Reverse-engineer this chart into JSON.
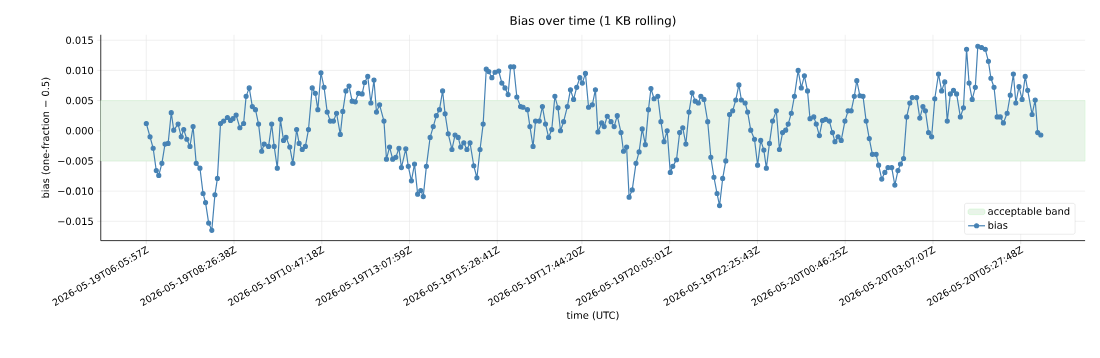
{
  "chart_data": {
    "type": "line",
    "title": "Bias over time (1 KB rolling)",
    "xlabel": "time (UTC)",
    "ylabel": "bias (one-fraction − 0.5)",
    "x": [
      "2026-05-19T06:06",
      "2026-05-19T06:12",
      "2026-05-19T06:17",
      "2026-05-19T06:22",
      "2026-05-19T06:26",
      "2026-05-19T06:31",
      "2026-05-19T06:36",
      "2026-05-19T06:41",
      "2026-05-19T06:46",
      "2026-05-19T06:50",
      "2026-05-19T06:57",
      "2026-05-19T07:02",
      "2026-05-19T07:06",
      "2026-05-19T07:11",
      "2026-05-19T07:16",
      "2026-05-19T07:21",
      "2026-05-19T07:26",
      "2026-05-19T07:32",
      "2026-05-19T07:37",
      "2026-05-19T07:41",
      "2026-05-19T07:46",
      "2026-05-19T07:51",
      "2026-05-19T07:56",
      "2026-05-19T08:00",
      "2026-05-19T08:05",
      "2026-05-19T08:10",
      "2026-05-19T08:16",
      "2026-05-19T08:21",
      "2026-05-19T08:25",
      "2026-05-19T08:30",
      "2026-05-19T08:36",
      "2026-05-19T08:42",
      "2026-05-19T08:46",
      "2026-05-19T08:51",
      "2026-05-19T08:56",
      "2026-05-19T09:01",
      "2026-05-19T09:06",
      "2026-05-19T09:11",
      "2026-05-19T09:15",
      "2026-05-19T09:22",
      "2026-05-19T09:27",
      "2026-05-19T09:31",
      "2026-05-19T09:36",
      "2026-05-19T09:41",
      "2026-05-19T09:46",
      "2026-05-19T09:50",
      "2026-05-19T09:56",
      "2026-05-19T10:01",
      "2026-05-19T10:07",
      "2026-05-19T10:11",
      "2026-05-19T10:16",
      "2026-05-19T10:21",
      "2026-05-19T10:26",
      "2026-05-19T10:32",
      "2026-05-19T10:37",
      "2026-05-19T10:41",
      "2026-05-19T10:46",
      "2026-05-19T10:51",
      "2026-05-19T10:56",
      "2026-05-19T11:01",
      "2026-05-19T11:06",
      "2026-05-19T11:11",
      "2026-05-19T11:17",
      "2026-05-19T11:21",
      "2026-05-19T11:26",
      "2026-05-19T11:31",
      "2026-05-19T11:36",
      "2026-05-19T11:41",
      "2026-05-19T11:46",
      "2026-05-19T11:52",
      "2026-05-19T11:56",
      "2026-05-19T12:01",
      "2026-05-19T12:06",
      "2026-05-19T12:11",
      "2026-05-19T12:15",
      "2026-05-19T12:20",
      "2026-05-19T12:27",
      "2026-05-19T12:31",
      "2026-05-19T12:36",
      "2026-05-19T12:41",
      "2026-05-19T12:46",
      "2026-05-19T12:51",
      "2026-05-19T12:55",
      "2026-05-19T13:02",
      "2026-05-19T13:06",
      "2026-05-19T13:11",
      "2026-05-19T13:16",
      "2026-05-19T13:21",
      "2026-05-19T13:26",
      "2026-05-19T13:30",
      "2026-05-19T13:35",
      "2026-05-19T13:41",
      "2026-05-19T13:46",
      "2026-05-19T13:51",
      "2026-05-19T13:56",
      "2026-05-19T14:01",
      "2026-05-19T14:05",
      "2026-05-19T14:10",
      "2026-05-19T14:16",
      "2026-05-19T14:21",
      "2026-05-19T14:26",
      "2026-05-19T14:30",
      "2026-05-19T14:35",
      "2026-05-19T14:40",
      "2026-05-19T14:45",
      "2026-05-19T14:51",
      "2026-05-19T14:56",
      "2026-05-19T15:01",
      "2026-05-19T15:06",
      "2026-05-19T15:11",
      "2026-05-19T15:15",
      "2026-05-19T15:20",
      "2026-05-19T15:25",
      "2026-05-19T15:31",
      "2026-05-19T15:36",
      "2026-05-19T15:41",
      "2026-05-19T15:46",
      "2026-05-19T15:50",
      "2026-05-19T15:55",
      "2026-05-19T16:00",
      "2026-05-19T16:06",
      "2026-05-19T16:10",
      "2026-05-19T16:17",
      "2026-05-19T16:21",
      "2026-05-19T16:26",
      "2026-05-19T16:30",
      "2026-05-19T16:36",
      "2026-05-19T16:41",
      "2026-05-19T16:46",
      "2026-05-19T16:51",
      "2026-05-19T16:56",
      "2026-05-19T17:01",
      "2026-05-19T17:06",
      "2026-05-19T17:10",
      "2026-05-19T17:15",
      "2026-05-19T17:21",
      "2026-05-19T17:26",
      "2026-05-19T17:31",
      "2026-05-19T17:36",
      "2026-05-19T17:41",
      "2026-05-19T17:45",
      "2026-05-19T17:50",
      "2026-05-19T17:55",
      "2026-05-19T18:01",
      "2026-05-19T18:06",
      "2026-05-19T18:10",
      "2026-05-19T18:16",
      "2026-05-19T18:20",
      "2026-05-19T18:25",
      "2026-05-19T18:31",
      "2026-05-19T18:36",
      "2026-05-19T18:41",
      "2026-05-19T18:47",
      "2026-05-19T18:51",
      "2026-05-19T18:56",
      "2026-05-19T19:00",
      "2026-05-19T19:05",
      "2026-05-19T19:11",
      "2026-05-19T19:16",
      "2026-05-19T19:21",
      "2026-05-19T19:26",
      "2026-05-19T19:31",
      "2026-05-19T19:35",
      "2026-05-19T19:40",
      "2026-05-19T19:46",
      "2026-05-19T19:51",
      "2026-05-19T19:56",
      "2026-05-19T20:01",
      "2026-05-19T20:06",
      "2026-05-19T20:10",
      "2026-05-19T20:16",
      "2026-05-19T20:21",
      "2026-05-19T20:26",
      "2026-05-19T20:31",
      "2026-05-19T20:36",
      "2026-05-19T20:41",
      "2026-05-19T20:46",
      "2026-05-19T20:51",
      "2026-05-19T20:55",
      "2026-05-19T21:00",
      "2026-05-19T21:06",
      "2026-05-19T21:11",
      "2026-05-19T21:16",
      "2026-05-19T21:21",
      "2026-05-19T21:25",
      "2026-05-19T21:30",
      "2026-05-19T21:35",
      "2026-05-19T21:41",
      "2026-05-19T21:46",
      "2026-05-19T21:51",
      "2026-05-19T21:56",
      "2026-05-19T22:00",
      "2026-05-19T22:06",
      "2026-05-19T22:10",
      "2026-05-19T22:15",
      "2026-05-19T22:21",
      "2026-05-19T22:26",
      "2026-05-19T22:31",
      "2026-05-19T22:36",
      "2026-05-19T22:40",
      "2026-05-19T22:45",
      "2026-05-19T22:50",
      "2026-05-19T22:56",
      "2026-05-19T23:01",
      "2026-05-19T23:06",
      "2026-05-19T23:11",
      "2026-05-19T23:15",
      "2026-05-19T23:20",
      "2026-05-19T23:25",
      "2026-05-19T23:31",
      "2026-05-19T23:36",
      "2026-05-19T23:41",
      "2026-05-19T23:46",
      "2026-05-19T23:50",
      "2026-05-19T23:56",
      "2026-05-20T00:00",
      "2026-05-20T00:05",
      "2026-05-20T00:10",
      "2026-05-20T00:15",
      "2026-05-20T00:21",
      "2026-05-20T00:26",
      "2026-05-20T00:30",
      "2026-05-20T00:35",
      "2026-05-20T00:40",
      "2026-05-20T00:46",
      "2026-05-20T00:51",
      "2026-05-20T00:56",
      "2026-05-20T01:01",
      "2026-05-20T01:05",
      "2026-05-20T01:10",
      "2026-05-20T01:15",
      "2026-05-20T01:20",
      "2026-05-20T01:25",
      "2026-05-20T01:30",
      "2026-05-20T01:36",
      "2026-05-20T01:40",
      "2026-05-20T01:45",
      "2026-05-20T01:50",
      "2026-05-20T01:55",
      "2026-05-20T02:01",
      "2026-05-20T02:06",
      "2026-05-20T02:11",
      "2026-05-20T02:15",
      "2026-05-20T02:20",
      "2026-05-20T02:25",
      "2026-05-20T02:30",
      "2026-05-20T02:34",
      "2026-05-20T02:41",
      "2026-05-20T02:46",
      "2026-05-20T02:51",
      "2026-05-20T02:55",
      "2026-05-20T03:00",
      "2026-05-20T03:05",
      "2026-05-20T03:10",
      "2026-05-20T03:16",
      "2026-05-20T03:21",
      "2026-05-20T03:26",
      "2026-05-20T03:30",
      "2026-05-20T03:35",
      "2026-05-20T03:40",
      "2026-05-20T03:45",
      "2026-05-20T03:51",
      "2026-05-20T03:56",
      "2026-05-20T04:01",
      "2026-05-20T04:05",
      "2026-05-20T04:10",
      "2026-05-20T04:15",
      "2026-05-20T04:19",
      "2026-05-20T04:25",
      "2026-05-20T04:31",
      "2026-05-20T04:36",
      "2026-05-20T04:40",
      "2026-05-20T04:45",
      "2026-05-20T04:50",
      "2026-05-20T04:55",
      "2026-05-20T05:00",
      "2026-05-20T05:06",
      "2026-05-20T05:11",
      "2026-05-20T05:16",
      "2026-05-20T05:20",
      "2026-05-20T05:25",
      "2026-05-20T05:30",
      "2026-05-20T05:35",
      "2026-05-20T05:39",
      "2026-05-20T05:46",
      "2026-05-20T05:51",
      "2026-05-20T05:55",
      "2026-05-20T06:00"
    ],
    "series": [
      {
        "name": "bias",
        "color": "#4682b4",
        "values": [
          0.0012,
          -0.001,
          -0.0029,
          -0.0066,
          -0.0074,
          -0.0054,
          -0.0022,
          -0.0021,
          0.003,
          0.0001,
          0.0011,
          -0.001,
          0.0002,
          -0.0014,
          -0.0026,
          0.0007,
          -0.0054,
          -0.0062,
          -0.0104,
          -0.0119,
          -0.0153,
          -0.0165,
          -0.0106,
          -0.0079,
          0.0012,
          0.0016,
          0.0022,
          0.0017,
          0.002,
          0.0026,
          0.0005,
          0.0012,
          0.0057,
          0.0071,
          0.004,
          0.0035,
          0.0011,
          -0.0034,
          -0.0022,
          -0.0026,
          0.0011,
          -0.0026,
          -0.0062,
          0.0019,
          -0.0016,
          -0.0011,
          -0.0027,
          -0.0054,
          0.0002,
          -0.0021,
          -0.0031,
          -0.0026,
          0.0002,
          0.0071,
          0.0062,
          0.0035,
          0.0096,
          0.0072,
          0.0031,
          0.0016,
          0.0016,
          0.0029,
          -0.0006,
          0.0032,
          0.0066,
          0.0074,
          0.0049,
          0.0048,
          0.0062,
          0.0061,
          0.008,
          0.009,
          0.0046,
          0.0084,
          0.0031,
          0.0043,
          0.0016,
          -0.0047,
          -0.0027,
          -0.0047,
          -0.0044,
          -0.0029,
          -0.0061,
          -0.003,
          -0.0059,
          -0.0083,
          -0.0055,
          -0.0105,
          -0.0099,
          -0.0109,
          -0.0059,
          -0.0011,
          0.0007,
          0.0025,
          0.0035,
          0.0066,
          0.0028,
          -0.0005,
          -0.0031,
          -0.0007,
          -0.0011,
          -0.0027,
          -0.002,
          -0.0031,
          -0.002,
          -0.0058,
          -0.0078,
          -0.0031,
          0.0011,
          0.0102,
          0.0098,
          0.0088,
          0.0097,
          0.0099,
          0.0079,
          0.0071,
          0.006,
          0.0106,
          0.0106,
          0.0056,
          0.004,
          0.0039,
          0.0035,
          0.0007,
          -0.0026,
          0.0016,
          0.0016,
          0.004,
          0.0011,
          -0.0011,
          0.0002,
          0.0057,
          0.0038,
          0.0,
          0.0015,
          0.004,
          0.0068,
          0.0052,
          0.0072,
          0.0088,
          0.0079,
          0.0095,
          0.0039,
          0.0043,
          0.0068,
          -0.0002,
          0.0013,
          0.0007,
          0.0024,
          0.0015,
          0.0007,
          0.0025,
          -0.0003,
          -0.0034,
          -0.0027,
          -0.011,
          -0.0098,
          -0.0054,
          -0.0035,
          0.0003,
          -0.0023,
          0.0035,
          0.007,
          0.0053,
          0.0057,
          0.0015,
          -0.0018,
          0.0,
          -0.0069,
          -0.0059,
          -0.0048,
          -0.0003,
          0.0005,
          -0.0022,
          0.0031,
          0.0063,
          0.0049,
          0.0046,
          0.0057,
          0.0052,
          0.0015,
          -0.0044,
          -0.0077,
          -0.0104,
          -0.0124,
          -0.0079,
          -0.005,
          0.0027,
          0.0033,
          0.0051,
          0.0076,
          0.0051,
          0.0046,
          0.0031,
          0.0001,
          -0.0014,
          -0.0057,
          -0.0016,
          -0.0032,
          -0.0062,
          -0.0021,
          0.0016,
          0.0033,
          -0.0031,
          -0.0003,
          0.0001,
          0.0011,
          0.0029,
          0.0057,
          0.01,
          0.0071,
          0.0091,
          0.0066,
          0.002,
          0.0023,
          0.0011,
          -0.0008,
          0.0017,
          0.0019,
          0.0016,
          -0.0003,
          -0.0018,
          -0.001,
          -0.0016,
          0.0016,
          0.0033,
          0.0033,
          0.0057,
          0.0083,
          0.0058,
          0.0057,
          0.0016,
          -0.0013,
          -0.0039,
          -0.0039,
          -0.0057,
          -0.008,
          -0.0069,
          -0.0061,
          -0.0061,
          -0.009,
          -0.0066,
          -0.0055,
          -0.0046,
          0.0023,
          0.0046,
          0.0055,
          0.0055,
          0.0021,
          0.004,
          0.0033,
          -0.0003,
          -0.001,
          0.0053,
          0.0094,
          0.0066,
          0.0081,
          0.0016,
          0.0061,
          0.0067,
          0.0061,
          0.0023,
          0.0038,
          0.0135,
          0.0079,
          0.0052,
          0.0072,
          0.014,
          0.0138,
          0.0135,
          0.0115,
          0.0087,
          0.0072,
          0.0023,
          0.0023,
          0.0013,
          0.0029,
          0.0059,
          0.0094,
          0.0046,
          0.0073,
          0.0052,
          0.009,
          0.0067,
          0.0027,
          0.0051,
          -0.0003,
          -0.0007
        ]
      }
    ],
    "bands": [
      {
        "axis": "y",
        "from": -0.005,
        "to": 0.005,
        "label": "acceptable band",
        "color": "#e9f4e9"
      }
    ],
    "xlim": [
      "2026-05-19T04:53",
      "2026-05-20T07:11"
    ],
    "ylim": [
      -0.0182,
      0.0159
    ],
    "xticks": [
      "2026-05-19T06:05:57Z",
      "2026-05-19T08:26:38Z",
      "2026-05-19T10:47:18Z",
      "2026-05-19T13:07:59Z",
      "2026-05-19T15:28:41Z",
      "2026-05-19T17:44:20Z",
      "2026-05-19T20:05:01Z",
      "2026-05-19T22:25:43Z",
      "2026-05-20T00:46:25Z",
      "2026-05-20T03:07:07Z",
      "2026-05-20T05:27:48Z"
    ],
    "yticks": [
      {
        "value": -0.015,
        "label": "−0.015"
      },
      {
        "value": -0.01,
        "label": "−0.010"
      },
      {
        "value": -0.005,
        "label": "−0.005"
      },
      {
        "value": 0,
        "label": "0.000"
      },
      {
        "value": 0.005,
        "label": "0.005"
      },
      {
        "value": 0.01,
        "label": "0.010"
      },
      {
        "value": 0.015,
        "label": "0.015"
      }
    ],
    "grid": true,
    "legend": "bottom right",
    "marker": "circle"
  }
}
